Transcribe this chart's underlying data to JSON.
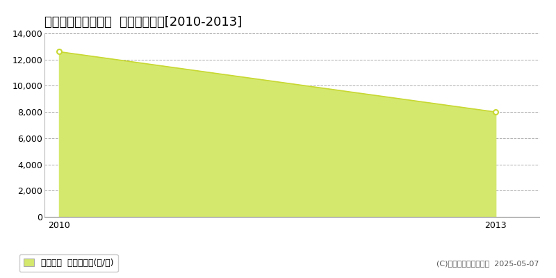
{
  "title": "足柄上郡開成町宮台  農地価格推移[2010-2013]",
  "x_values": [
    2010,
    2013
  ],
  "y_values": [
    12600,
    8000
  ],
  "ylim": [
    0,
    14000
  ],
  "yticks": [
    0,
    2000,
    4000,
    6000,
    8000,
    10000,
    12000,
    14000
  ],
  "xticks": [
    2010,
    2013
  ],
  "line_color": "#c8d832",
  "fill_color": "#d4e86e",
  "fill_alpha": 1.0,
  "marker_facecolor": "#ffffff",
  "marker_edgecolor": "#c8d832",
  "marker_size": 5,
  "grid_color": "#aaaaaa",
  "grid_style": "--",
  "background_color": "#ffffff",
  "legend_label": "農地価格  平均坪単価(円/坪)",
  "copyright_text": "(C)土地価格ドットコム  2025-05-07",
  "title_fontsize": 13,
  "axis_fontsize": 9,
  "legend_fontsize": 9,
  "copyright_fontsize": 8
}
